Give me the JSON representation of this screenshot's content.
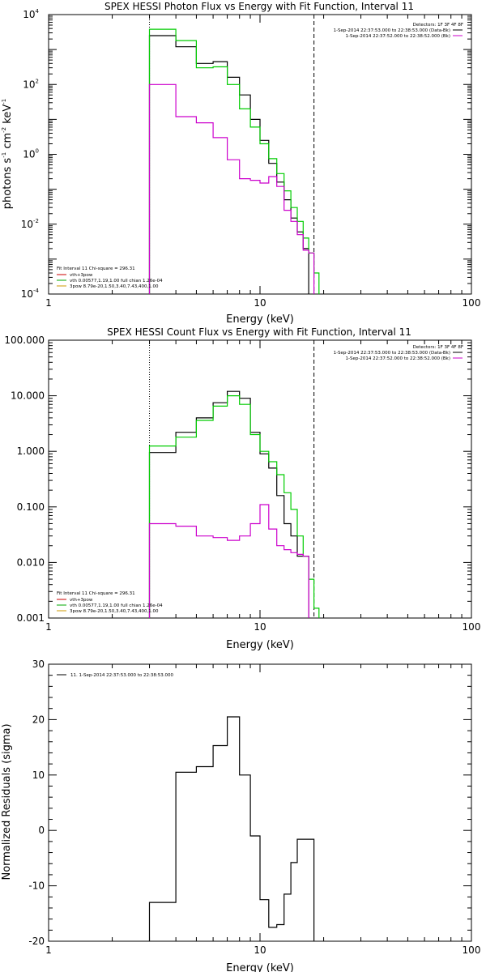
{
  "plots": [
    {
      "id": "photon",
      "title": "SPEX HESSI Photon Flux vs Energy with Fit Function, Interval 11",
      "xlabel": "Energy (keV)",
      "ylabel_parts": [
        "photons s",
        "-1",
        " cm",
        "-2",
        " keV",
        "-1"
      ],
      "xticks": [
        "1",
        "10",
        "100"
      ],
      "yticks": [
        {
          "base": "10",
          "exp": "4"
        },
        {
          "base": "10",
          "exp": "2"
        },
        {
          "base": "10",
          "exp": "0"
        },
        {
          "base": "10",
          "exp": "-2"
        },
        {
          "base": "10",
          "exp": "-4"
        }
      ],
      "legend_header": "Detectors: 1F 3F 4F 8F",
      "legend_right": [
        {
          "text": "1-Sep-2014 22:37:53.000 to 22:38:53.000 (Data-Bk)",
          "color": "#000000"
        },
        {
          "text": "1-Sep-2014 22:37:52.000 to 22:38:52.000 (Bk)",
          "color": "#cc00cc"
        }
      ],
      "fit_title": "Fit Interval 11   Chi-square = 296.31",
      "fit_entries": [
        {
          "text": "vth+3pow",
          "color": "#cc0000"
        },
        {
          "text": "vth 0.00577,1.19,1.00  full chian 1.26e-04",
          "color": "#00aa00"
        },
        {
          "text": "3pow 8.79e-20,1.50,3.40,7.43,400,1.00",
          "color": "#cc9900"
        }
      ]
    },
    {
      "id": "count",
      "title": "SPEX HESSI Count Flux vs Energy with Fit Function, Interval 11",
      "xlabel": "Energy (keV)",
      "ylabel_parts": [],
      "xticks": [
        "1",
        "10",
        "100"
      ],
      "yticks": [
        {
          "base": "100.000"
        },
        {
          "base": "10.000"
        },
        {
          "base": "1.000"
        },
        {
          "base": "0.100"
        },
        {
          "base": "0.010"
        },
        {
          "base": "0.001"
        }
      ],
      "legend_header": "Detectors: 1F 3F 4F 8F",
      "legend_right": [
        {
          "text": "1-Sep-2014 22:37:53.000 to 22:38:53.000 (Data-Bk)",
          "color": "#000000"
        },
        {
          "text": "1-Sep-2014 22:37:52.000 to 22:38:52.000 (Bk)",
          "color": "#cc00cc"
        }
      ],
      "fit_title": "Fit Interval 11   Chi-square = 296.31",
      "fit_entries": [
        {
          "text": "vth+3pow",
          "color": "#cc0000"
        },
        {
          "text": "vth 0.00577,1.19,1.00  full chian 1.26e-04",
          "color": "#00aa00"
        },
        {
          "text": "3pow 8.79e-20,1.50,3.40,7.43,400,1.00",
          "color": "#cc9900"
        }
      ]
    },
    {
      "id": "resid",
      "title": "",
      "xlabel": "Energy (keV)",
      "ylabel_text": "Normalized Residuals (sigma)",
      "xticks": [
        "1",
        "10",
        "100"
      ],
      "yticks": [
        {
          "base": "30"
        },
        {
          "base": "20"
        },
        {
          "base": "10"
        },
        {
          "base": "0"
        },
        {
          "base": "-10"
        },
        {
          "base": "-20"
        }
      ],
      "legend_header": "",
      "legend_right": [],
      "legend_left": "11.  1-Sep-2014 22:37:53.000 to 22:38:53.000",
      "fit_title": "",
      "fit_entries": []
    }
  ],
  "chart_data": [
    {
      "type": "line",
      "title": "SPEX HESSI Photon Flux vs Energy with Fit Function, Interval 11",
      "xlabel": "Energy (keV)",
      "ylabel": "photons s-1 cm-2 keV-1",
      "xscale": "log",
      "yscale": "log",
      "xlim": [
        1,
        100
      ],
      "ylim": [
        0.0001,
        10000
      ],
      "edges": [
        3,
        4,
        5,
        6,
        7,
        8,
        9,
        10,
        11,
        12,
        13,
        14,
        15,
        16,
        17,
        18,
        19,
        20
      ],
      "series": [
        {
          "name": "1-Sep-2014 22:37:53.000 to 22:38:53.000 (Data-Bk)",
          "color": "#000000",
          "values": [
            2500,
            1200,
            400,
            450,
            160,
            50,
            10,
            2.5,
            0.55,
            0.16,
            0.05,
            0.015,
            0.006,
            0.002,
            null,
            null,
            null
          ]
        },
        {
          "name": "vth 0.00577,1.19,1.00  full chian 1.26e-04",
          "color": "#00cc00",
          "values": [
            3800,
            1800,
            300,
            320,
            100,
            20,
            6,
            2.0,
            0.75,
            0.28,
            0.09,
            0.03,
            0.012,
            0.004,
            0.0015,
            0.0004,
            null
          ]
        },
        {
          "name": "1-Sep-2014 22:37:52.000 to 22:38:52.000 (Bk)",
          "color": "#cc00cc",
          "values": [
            100,
            12,
            8,
            3,
            0.7,
            0.2,
            0.18,
            0.15,
            0.23,
            0.12,
            0.025,
            0.012,
            0.005,
            0.0018,
            0.0015,
            null,
            null
          ]
        }
      ],
      "markers": [
        {
          "x": 3,
          "style": "dotted"
        },
        {
          "x": 18,
          "style": "dashed"
        }
      ],
      "legend": "top-right"
    },
    {
      "type": "line",
      "title": "SPEX HESSI Count Flux vs Energy with Fit Function, Interval 11",
      "xlabel": "Energy (keV)",
      "ylabel": "",
      "xscale": "log",
      "yscale": "log",
      "xlim": [
        1,
        100
      ],
      "ylim": [
        0.001,
        100
      ],
      "edges": [
        3,
        4,
        5,
        6,
        7,
        8,
        9,
        10,
        11,
        12,
        13,
        14,
        15,
        16,
        17,
        18,
        19,
        20
      ],
      "series": [
        {
          "name": "1-Sep-2014 22:37:53.000 to 22:38:53.000 (Data-Bk)",
          "color": "#000000",
          "values": [
            0.95,
            2.2,
            4.0,
            7.5,
            12,
            9,
            2.2,
            0.9,
            0.5,
            0.16,
            0.05,
            0.03,
            0.013,
            0.013,
            null,
            null,
            null
          ]
        },
        {
          "name": "vth 0.00577,1.19,1.00  full chian 1.26e-04",
          "color": "#00cc00",
          "values": [
            1.25,
            1.8,
            3.6,
            6.5,
            10,
            7,
            2.0,
            1.0,
            0.65,
            0.38,
            0.18,
            0.09,
            0.03,
            0.013,
            0.005,
            0.0015,
            null
          ]
        },
        {
          "name": "1-Sep-2014 22:37:52.000 to 22:38:52.000 (Bk)",
          "color": "#cc00cc",
          "values": [
            0.05,
            0.045,
            0.03,
            0.028,
            0.025,
            0.03,
            0.05,
            0.11,
            0.04,
            0.02,
            0.017,
            0.015,
            0.014,
            0.013,
            null,
            null,
            null
          ]
        }
      ],
      "markers": [
        {
          "x": 3,
          "style": "dotted"
        },
        {
          "x": 18,
          "style": "dashed"
        }
      ],
      "legend": "top-right"
    },
    {
      "type": "line",
      "title": "",
      "xlabel": "Energy (keV)",
      "ylabel": "Normalized Residuals (sigma)",
      "xscale": "log",
      "yscale": "linear",
      "xlim": [
        1,
        100
      ],
      "ylim": [
        -20,
        30
      ],
      "edges": [
        3,
        4,
        5,
        6,
        7,
        8,
        9,
        10,
        11,
        12,
        13,
        14,
        15,
        16,
        17,
        18
      ],
      "series": [
        {
          "name": "11.  1-Sep-2014 22:37:53.000 to 22:38:53.000",
          "color": "#000000",
          "values": [
            -13,
            10.5,
            11.5,
            15.3,
            20.5,
            10,
            -1,
            -12.5,
            -17.5,
            -17,
            -11.5,
            -5.8,
            -1.6,
            -1.6,
            -1.6
          ]
        }
      ],
      "legend": "top-left"
    }
  ]
}
